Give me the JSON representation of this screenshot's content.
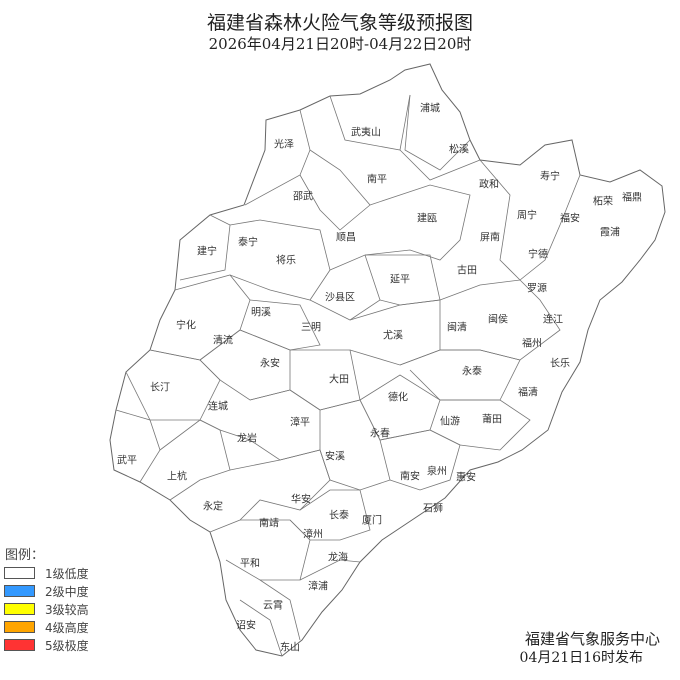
{
  "title": "福建省森林火险气象等级预报图",
  "subtitle": "2026年04月21日20时-04月22日20时",
  "legend": {
    "title": "图例：",
    "items": [
      {
        "label": "1级低度",
        "color": "#ffffff"
      },
      {
        "label": "2级中度",
        "color": "#3399ff"
      },
      {
        "label": "3级较高",
        "color": "#ffff00"
      },
      {
        "label": "4级高度",
        "color": "#ffa500"
      },
      {
        "label": "5级极度",
        "color": "#ff3333"
      }
    ]
  },
  "region_fill": "#ffffff",
  "counties": [
    "光泽",
    "武夷山",
    "浦城",
    "松溪",
    "政和",
    "寿宁",
    "柘荣",
    "福鼎",
    "周宁",
    "福安",
    "霞浦",
    "南平",
    "邵武",
    "建瓯",
    "顺昌",
    "屏南",
    "宁德",
    "建宁",
    "泰宁",
    "将乐",
    "古田",
    "延平",
    "罗源",
    "沙县区",
    "明溪",
    "闽侯",
    "连江",
    "宁化",
    "三明",
    "闽清",
    "尤溪",
    "清流",
    "福州",
    "长乐",
    "永安",
    "大田",
    "永泰",
    "长汀",
    "福清",
    "德化",
    "连城",
    "仙游",
    "莆田",
    "漳平",
    "永春",
    "龙岩",
    "武平",
    "安溪",
    "上杭",
    "南安",
    "泉州",
    "惠安",
    "华安",
    "永定",
    "长泰",
    "厦门",
    "石狮",
    "南靖",
    "漳州",
    "龙海",
    "平和",
    "漳浦",
    "云霄",
    "诏安",
    "东山"
  ],
  "issuer": "福建省气象服务中心",
  "issued_time": "04月21日16时发布"
}
